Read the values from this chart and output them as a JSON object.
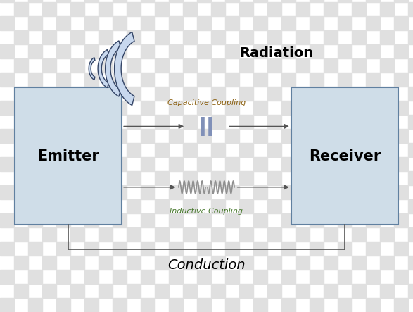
{
  "bg_color": "#ffffff",
  "checker_light": "#f0f0f0",
  "checker_dark": "#e0e0e0",
  "box_fill": "#cfdde8",
  "box_edge": "#6080a0",
  "emitter_label": "Emitter",
  "receiver_label": "Receiver",
  "radiation_label": "Radiation",
  "capacitive_label": "Capacitive Coupling",
  "inductive_label": "Inductive Coupling",
  "conduction_label": "Conduction",
  "arrow_color": "#555555",
  "text_color_cap": "#8B6010",
  "text_color_ind_green": "#4a7a30",
  "text_color_ind_blue": "#3050a0",
  "text_color_ind_orange": "#c06010",
  "text_color_cond": "#000000",
  "text_color_rad": "#000000",
  "box_label_color": "#000000",
  "capacitor_color": "#8090b8",
  "inductor_color": "#909090",
  "wave_color": "#8899bb",
  "wave_fill": "#c8d8ee",
  "wave_edge": "#334466"
}
